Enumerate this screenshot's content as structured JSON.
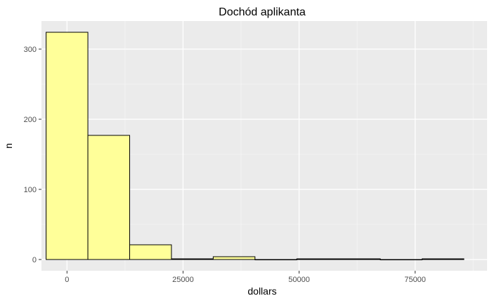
{
  "chart_data": {
    "type": "bar",
    "title": "Dochód aplikanta",
    "xlabel": "dollars",
    "ylabel": "n",
    "xlim": [
      -5500,
      90500
    ],
    "ylim": [
      -16,
      340
    ],
    "x_ticks": [
      0,
      25000,
      50000,
      75000
    ],
    "x_tick_labels": [
      "0",
      "25000",
      "50000",
      "75000"
    ],
    "y_ticks": [
      0,
      100,
      200,
      300
    ],
    "y_tick_labels": [
      "0",
      "100",
      "200",
      "300"
    ],
    "grid": true,
    "bin_width": 9000,
    "bins": [
      {
        "x_start": -4500,
        "x_end": 4500,
        "count": 324
      },
      {
        "x_start": 4500,
        "x_end": 13500,
        "count": 177
      },
      {
        "x_start": 13500,
        "x_end": 22500,
        "count": 21
      },
      {
        "x_start": 22500,
        "x_end": 31500,
        "count": 1
      },
      {
        "x_start": 31500,
        "x_end": 40500,
        "count": 4
      },
      {
        "x_start": 40500,
        "x_end": 49500,
        "count": 0
      },
      {
        "x_start": 49500,
        "x_end": 58500,
        "count": 1
      },
      {
        "x_start": 58500,
        "x_end": 67500,
        "count": 1
      },
      {
        "x_start": 67500,
        "x_end": 76500,
        "count": 0
      },
      {
        "x_start": 76500,
        "x_end": 85500,
        "count": 1
      }
    ],
    "colors": {
      "bar_fill": "#FFFF99",
      "bar_stroke": "#000000",
      "panel_bg": "#EBEBEB",
      "grid_major": "#FFFFFF",
      "grid_minor": "#F5F5F5",
      "tick_text": "#4D4D4D",
      "tick_mark": "#333333"
    }
  }
}
